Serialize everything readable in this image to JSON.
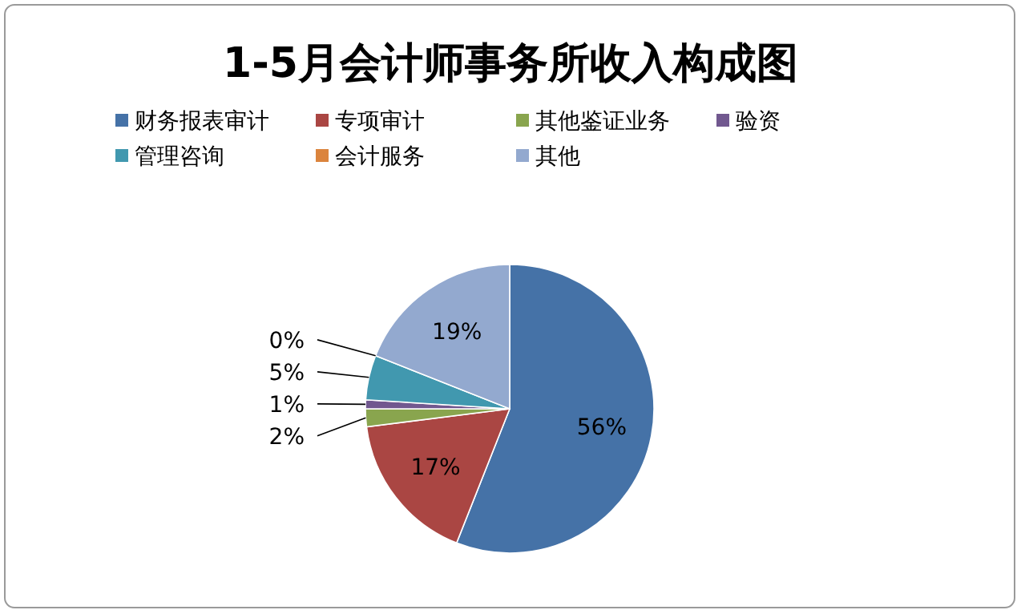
{
  "chart_data": {
    "type": "pie",
    "title": "1-5月会计师事务所收入构成图",
    "categories": [
      "财务报表审计",
      "专项审计",
      "其他鉴证业务",
      "验资",
      "管理咨询",
      "会计服务",
      "其他"
    ],
    "values": [
      56,
      17,
      2,
      1,
      5,
      0,
      19
    ],
    "colors": [
      "#4572a7",
      "#aa4643",
      "#89a54e",
      "#71588f",
      "#4198af",
      "#db843d",
      "#93a9cf"
    ],
    "value_labels": [
      "56%",
      "17%",
      "2%",
      "1%",
      "5%",
      "0%",
      "19%"
    ],
    "legend": "top"
  }
}
